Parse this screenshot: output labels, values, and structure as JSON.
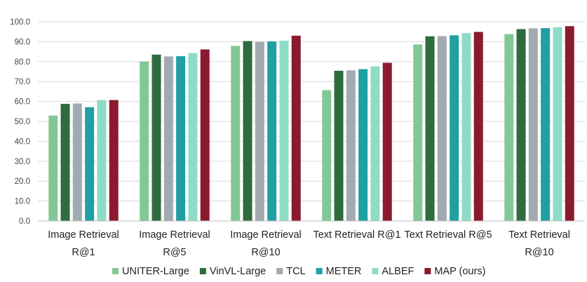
{
  "chart_data": {
    "type": "bar",
    "title": "",
    "xlabel": "",
    "ylabel": "",
    "ylim": [
      0,
      100
    ],
    "yticks": [
      "0.0",
      "10.0",
      "20.0",
      "30.0",
      "40.0",
      "50.0",
      "60.0",
      "70.0",
      "80.0",
      "90.0",
      "100.0"
    ],
    "grid": "horizontal",
    "legend_position": "bottom",
    "categories": [
      [
        "Image Retrieval",
        "R@1"
      ],
      [
        "Image Retrieval",
        "R@5"
      ],
      [
        "Image Retrieval",
        "R@10"
      ],
      [
        "Text Retrieval R@1"
      ],
      [
        "Text Retrieval R@5"
      ],
      [
        "Text Retrieval",
        "R@10"
      ]
    ],
    "series": [
      {
        "name": "UNITER-Large",
        "color": "#82c896",
        "values": [
          52.9,
          80.0,
          87.9,
          65.7,
          88.6,
          93.8
        ]
      },
      {
        "name": "VinVL-Large",
        "color": "#2e6b3f",
        "values": [
          58.8,
          83.5,
          90.3,
          75.4,
          92.7,
          96.3
        ]
      },
      {
        "name": "TCL",
        "color": "#a1aab0",
        "values": [
          59.0,
          82.6,
          89.9,
          75.6,
          92.8,
          96.7
        ]
      },
      {
        "name": "METER",
        "color": "#1fa0a4",
        "values": [
          57.1,
          82.7,
          90.1,
          76.2,
          93.2,
          96.8
        ]
      },
      {
        "name": "ALBEF",
        "color": "#8fdcc6",
        "values": [
          60.7,
          84.3,
          90.5,
          77.6,
          94.3,
          97.2
        ]
      },
      {
        "name": "MAP (ours)",
        "color": "#8b1a2e",
        "values": [
          60.7,
          86.1,
          93.0,
          79.4,
          94.9,
          97.8
        ]
      }
    ]
  }
}
